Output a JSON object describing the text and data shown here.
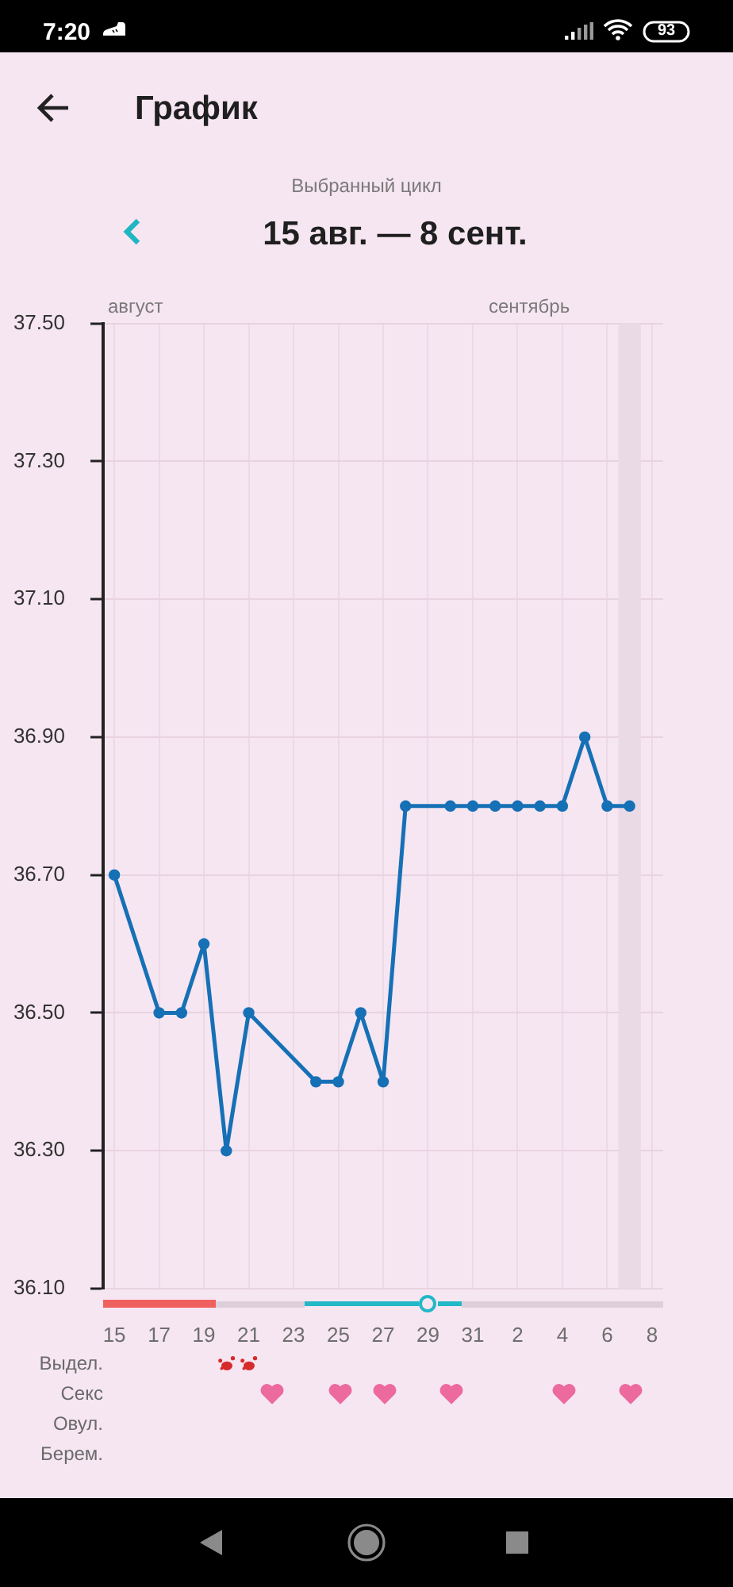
{
  "chart_data": {
    "type": "line",
    "title": "График",
    "subtitle": "Выбранный цикл",
    "annotations": [
      "15 авг. — 8 сент.",
      "август",
      "сентябрь",
      "Выдел.",
      "Секс",
      "Овул.",
      "Берем.",
      "7:20",
      "93"
    ],
    "x": [
      "--08-15",
      "--08-17",
      "--08-18",
      "--08-19",
      "--08-20",
      "--08-21",
      "--08-24",
      "--08-25",
      "--08-26",
      "--08-27",
      "--08-28",
      "--08-30",
      "--08-31",
      "--09-01",
      "--09-02",
      "--09-03",
      "--09-04",
      "--09-05",
      "--09-06",
      "--09-07"
    ],
    "series": [
      {
        "color": "#1670b6",
        "values": [
          36.7,
          36.5,
          36.5,
          36.6,
          36.3,
          36.5,
          36.4,
          36.4,
          36.5,
          36.4,
          36.8,
          36.8,
          36.8,
          36.8,
          36.8,
          36.8,
          36.8,
          36.9,
          36.8,
          36.8
        ]
      }
    ],
    "xlim": [
      "--08-14T12:00",
      "--09-08T12:00"
    ],
    "xticks": [
      {
        "value": "--08-15",
        "label": "15"
      },
      {
        "value": "--08-17",
        "label": "17"
      },
      {
        "value": "--08-19",
        "label": "19"
      },
      {
        "value": "--08-21",
        "label": "21"
      },
      {
        "value": "--08-23",
        "label": "23"
      },
      {
        "value": "--08-25",
        "label": "25"
      },
      {
        "value": "--08-27",
        "label": "27"
      },
      {
        "value": "--08-29",
        "label": "29"
      },
      {
        "value": "--08-31",
        "label": "31"
      },
      {
        "value": "--09-02",
        "label": "2"
      },
      {
        "value": "--09-04",
        "label": "4"
      },
      {
        "value": "--09-06",
        "label": "6"
      },
      {
        "value": "--09-08",
        "label": "8"
      }
    ],
    "ylim": [
      36.1,
      37.5
    ],
    "yticks": [
      {
        "value": 36.1,
        "label": "36.10"
      },
      {
        "value": 36.3,
        "label": "36.30"
      },
      {
        "value": 36.5,
        "label": "36.50"
      },
      {
        "value": 36.7,
        "label": "36.70"
      },
      {
        "value": 36.9,
        "label": "36.90"
      },
      {
        "value": 37.1,
        "label": "37.10"
      },
      {
        "value": 37.3,
        "label": "37.30"
      },
      {
        "value": 37.5,
        "label": "37.50"
      }
    ],
    "bands": [
      {
        "axis": "x",
        "from": "--09-06T12:00",
        "to": "--09-07T12:00",
        "color": "#eadae6"
      }
    ],
    "grid": true,
    "marker": "circle",
    "line_style": "solid"
  }
}
